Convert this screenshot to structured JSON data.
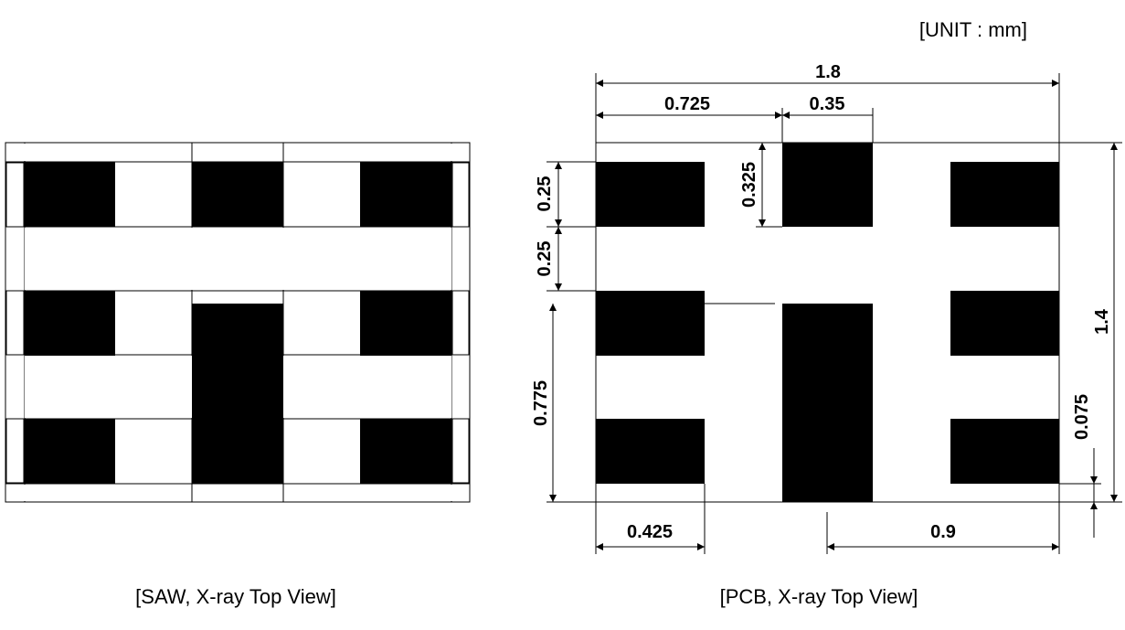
{
  "unit_label": "[UNIT : mm]",
  "saw_caption": "[SAW, X-ray Top View]",
  "pcb_caption": "[PCB, X-ray Top View]",
  "dimensions": {
    "total_width": "1.8",
    "pad_offset": "0.725",
    "center_pad_width": "0.35",
    "center_top_pad_height": "0.325",
    "side_pad_height": "0.25",
    "side_pad_gap": "0.25",
    "lower_span": "0.775",
    "side_pad_width": "0.425",
    "right_span": "0.9",
    "total_height": "1.4",
    "bottom_gap": "0.075"
  },
  "colors": {
    "pad": "#000000",
    "outline": "#000000",
    "background": "#ffffff"
  }
}
